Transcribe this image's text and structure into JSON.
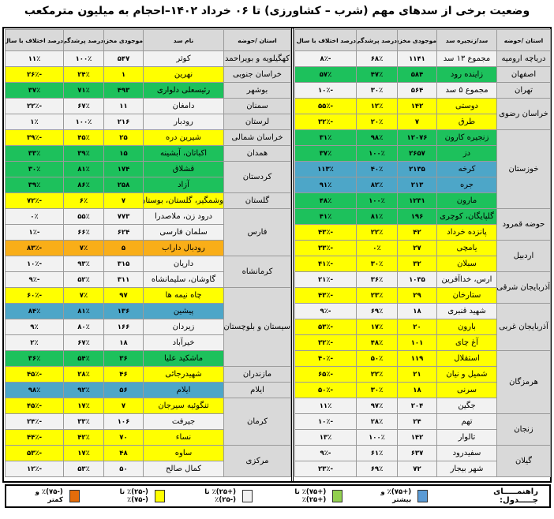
{
  "title": "وضعیت برخی از سدهای مهم (شرب – کشاورزی) تا ۰۶ خرداد ۱۴۰۲–احجام به میلیون مترمکعب",
  "colors": {
    "blue": "#4da6c8",
    "green": "#1dc15c",
    "white": "#f2f2f2",
    "yellow": "#ffff00",
    "orange": "#f9ae18",
    "header": "#d9d9d9"
  },
  "right_table": {
    "headers": [
      "استان /حوضه",
      "سد/زنجیره سد",
      "موجودی مخزن",
      "درصد پرشدگی",
      "درصد اختلاف با سال قبل"
    ],
    "groups": [
      {
        "province": "دریاچه ارومیه",
        "dams": [
          {
            "name": "مجموع ۱۳ سد",
            "storage": "۱۱۴۱",
            "fill": "۶۸٪",
            "change": "-۸٪",
            "level": "white"
          }
        ]
      },
      {
        "province": "اصفهان",
        "dams": [
          {
            "name": "زاینده رود",
            "storage": "۵۸۴",
            "fill": "۴۷٪",
            "change": "۵۷٪",
            "level": "green"
          }
        ]
      },
      {
        "province": "تهران",
        "dams": [
          {
            "name": "مجموع ۵ سد",
            "storage": "۵۶۴",
            "fill": "۳۰٪",
            "change": "-۱۰٪",
            "level": "white"
          }
        ]
      },
      {
        "province": "خراسان رضوی",
        "dams": [
          {
            "name": "دوستی",
            "storage": "۱۴۲",
            "fill": "۱۲٪",
            "change": "-۵۵٪",
            "level": "yellow"
          },
          {
            "name": "طرق",
            "storage": "۷",
            "fill": "۲۰٪",
            "change": "-۳۲٪",
            "level": "yellow"
          }
        ]
      },
      {
        "province": "خوزستان",
        "dams": [
          {
            "name": "زنجیره کارون",
            "storage": "۱۲۰۷۶",
            "fill": "۹۸٪",
            "change": "۳۱٪",
            "level": "green"
          },
          {
            "name": "دز",
            "storage": "۲۶۵۷",
            "fill": "۱۰۰٪",
            "change": "۳۷٪",
            "level": "green"
          },
          {
            "name": "کرخه",
            "storage": "۲۱۳۵",
            "fill": "۴۰٪",
            "change": "۱۱۳٪",
            "level": "blue"
          },
          {
            "name": "جره",
            "storage": "۲۱۳",
            "fill": "۸۲٪",
            "change": "۹۱٪",
            "level": "blue"
          },
          {
            "name": "مارون",
            "storage": "۱۲۳۱",
            "fill": "۱۰۰٪",
            "change": "۴۸٪",
            "level": "green"
          }
        ]
      },
      {
        "province": "حوضه قمرود",
        "dams": [
          {
            "name": "گلپایگان، کوچری",
            "storage": "۱۹۶",
            "fill": "۸۱٪",
            "change": "۴۱٪",
            "level": "green"
          },
          {
            "name": "پانزده خرداد",
            "storage": "۴۲",
            "fill": "۲۲٪",
            "change": "-۴۳٪",
            "level": "yellow"
          }
        ]
      },
      {
        "province": "اردبیل",
        "dams": [
          {
            "name": "یامچی",
            "storage": "۲۷",
            "fill": "۰٪",
            "change": "-۳۳٪",
            "level": "yellow"
          },
          {
            "name": "سبلان",
            "storage": "۳۲",
            "fill": "۳۰٪",
            "change": "-۴۱٪",
            "level": "yellow"
          }
        ]
      },
      {
        "province": "آذربایجان شرقی",
        "dams": [
          {
            "name": "ارس، خداآفرین",
            "storage": "۱۰۳۵",
            "fill": "۳۶٪",
            "change": "-۲۱٪",
            "level": "white"
          },
          {
            "name": "ستارخان",
            "storage": "۲۹",
            "fill": "۲۳٪",
            "change": "-۴۳٪",
            "level": "yellow"
          }
        ]
      },
      {
        "province": "آذربایجان غربی",
        "dams": [
          {
            "name": "شهید قنبری",
            "storage": "۱۸",
            "fill": "۶۹٪",
            "change": "-۹٪",
            "level": "white"
          },
          {
            "name": "بارون",
            "storage": "۲۰",
            "fill": "۱۷٪",
            "change": "-۵۳٪",
            "level": "yellow"
          },
          {
            "name": "آغ چای",
            "storage": "۱۰۱",
            "fill": "۴۸٪",
            "change": "-۳۲٪",
            "level": "yellow"
          }
        ]
      },
      {
        "province": "هرمزگان",
        "dams": [
          {
            "name": "استقلال",
            "storage": "۱۱۹",
            "fill": "۵۰٪",
            "change": "-۴۰٪",
            "level": "yellow"
          },
          {
            "name": "شمیل و نیان",
            "storage": "۲۱",
            "fill": "۲۲٪",
            "change": "-۶۵٪",
            "level": "yellow"
          },
          {
            "name": "سرنی",
            "storage": "۱۸",
            "fill": "۳۰٪",
            "change": "-۵۰٪",
            "level": "yellow"
          },
          {
            "name": "جگین",
            "storage": "۲۰۴",
            "fill": "۹۷٪",
            "change": "۱۱٪",
            "level": "white"
          }
        ]
      },
      {
        "province": "زنجان",
        "dams": [
          {
            "name": "تهم",
            "storage": "۲۴",
            "fill": "۲۸٪",
            "change": "-۱۰٪",
            "level": "white"
          },
          {
            "name": "تالوار",
            "storage": "۱۴۲",
            "fill": "۱۰۰٪",
            "change": "۱۳٪",
            "level": "white"
          }
        ]
      },
      {
        "province": "گیلان",
        "dams": [
          {
            "name": "سفیدرود",
            "storage": "۶۳۷",
            "fill": "۶۱٪",
            "change": "-۹٪",
            "level": "white"
          },
          {
            "name": "شهر بیجار",
            "storage": "۷۲",
            "fill": "۶۹٪",
            "change": "-۲۳٪",
            "level": "white"
          }
        ]
      }
    ]
  },
  "left_table": {
    "headers": [
      "استان /حوضه",
      "نام سد",
      "موجودی مخزن",
      "درصد پرشدگی",
      "درصد اختلاف با سال قبل"
    ],
    "groups": [
      {
        "province": "کهگیلویه و بویراحمد",
        "dams": [
          {
            "name": "کوثر",
            "storage": "۵۴۷",
            "fill": "۱۰۰٪",
            "change": "۱۱٪",
            "level": "white"
          }
        ]
      },
      {
        "province": "خراسان جنوبی",
        "dams": [
          {
            "name": "نهرین",
            "storage": "۱",
            "fill": "۲۴٪",
            "change": "-۲۶٪",
            "level": "yellow"
          }
        ]
      },
      {
        "province": "بوشهر",
        "dams": [
          {
            "name": "رئیسعلی دلواری",
            "storage": "۴۹۳",
            "fill": "۷۱٪",
            "change": "۳۷٪",
            "level": "green"
          }
        ]
      },
      {
        "province": "سمنان",
        "dams": [
          {
            "name": "دامغان",
            "storage": "۱۱",
            "fill": "۶۷٪",
            "change": "-۲۲٪",
            "level": "white"
          }
        ]
      },
      {
        "province": "لرستان",
        "dams": [
          {
            "name": "رودبار",
            "storage": "۲۱۶",
            "fill": "۱۰۰٪",
            "change": "۱٪",
            "level": "white"
          }
        ]
      },
      {
        "province": "خراسان شمالی",
        "dams": [
          {
            "name": "شیرین دره",
            "storage": "۲۵",
            "fill": "۴۵٪",
            "change": "-۳۹٪",
            "level": "yellow"
          }
        ]
      },
      {
        "province": "همدان",
        "dams": [
          {
            "name": "اکباتان، آبشینه",
            "storage": "۱۵",
            "fill": "۳۹٪",
            "change": "۳۳٪",
            "level": "green"
          }
        ]
      },
      {
        "province": "کردستان",
        "dams": [
          {
            "name": "قشلاق",
            "storage": "۱۷۴",
            "fill": "۸۱٪",
            "change": "۳۰٪",
            "level": "green"
          },
          {
            "name": "آزاد",
            "storage": "۲۵۸",
            "fill": "۸۶٪",
            "change": "۳۹٪",
            "level": "green"
          }
        ]
      },
      {
        "province": "گلستان",
        "dams": [
          {
            "name": "وشمگیر، گلستان، بوستان",
            "storage": "۷",
            "fill": "۶٪",
            "change": "-۷۲٪",
            "level": "yellow"
          }
        ]
      },
      {
        "province": "فارس",
        "dams": [
          {
            "name": "درود زن، ملاصدرا",
            "storage": "۷۷۳",
            "fill": "۵۵٪",
            "change": "۰٪",
            "level": "white"
          },
          {
            "name": "سلمان فارسی",
            "storage": "۶۲۴",
            "fill": "۶۶٪",
            "change": "-۱٪",
            "level": "white"
          },
          {
            "name": "رودبال داراب",
            "storage": "۵",
            "fill": "۷٪",
            "change": "-۸۳٪",
            "level": "orange"
          }
        ]
      },
      {
        "province": "کرمانشاه",
        "dams": [
          {
            "name": "داریان",
            "storage": "۳۱۵",
            "fill": "۹۳٪",
            "change": "-۱۰٪",
            "level": "white"
          },
          {
            "name": "گاوشان، سلیمانشاه",
            "storage": "۳۱۱",
            "fill": "۵۲٪",
            "change": "-۹٪",
            "level": "white"
          }
        ]
      },
      {
        "province": "سیستان و بلوچستان",
        "dams": [
          {
            "name": "چاه نیمه ها",
            "storage": "۹۷",
            "fill": "۷٪",
            "change": "-۶۰٪",
            "level": "yellow"
          },
          {
            "name": "پیشین",
            "storage": "۱۳۶",
            "fill": "۸۱٪",
            "change": "۸۴٪",
            "level": "blue"
          },
          {
            "name": "زیردان",
            "storage": "۱۶۶",
            "fill": "۸۰٪",
            "change": "۹٪",
            "level": "white"
          },
          {
            "name": "خیرآباد",
            "storage": "۱۸",
            "fill": "۶۷٪",
            "change": "۲٪",
            "level": "white"
          },
          {
            "name": "ماشکید علیا",
            "storage": "۳۶",
            "fill": "۵۴٪",
            "change": "۳۶٪",
            "level": "green"
          }
        ]
      },
      {
        "province": "مازندران",
        "dams": [
          {
            "name": "شهیدرجائی",
            "storage": "۴۶",
            "fill": "۲۸٪",
            "change": "-۴۵٪",
            "level": "yellow"
          }
        ]
      },
      {
        "province": "ایلام",
        "dams": [
          {
            "name": "ایلام",
            "storage": "۵۶",
            "fill": "۹۲٪",
            "change": "۹۸٪",
            "level": "blue"
          }
        ]
      },
      {
        "province": "کرمان",
        "dams": [
          {
            "name": "تنگوئیه سیرجان",
            "storage": "۷",
            "fill": "۱۷٪",
            "change": "-۴۵٪",
            "level": "yellow"
          },
          {
            "name": "جیرفت",
            "storage": "۱۰۶",
            "fill": "۳۳٪",
            "change": "-۲۴٪",
            "level": "white"
          },
          {
            "name": "نساء",
            "storage": "۷۰",
            "fill": "۴۲٪",
            "change": "-۴۴٪",
            "level": "yellow"
          }
        ]
      },
      {
        "province": "مرکزی",
        "dams": [
          {
            "name": "ساوه",
            "storage": "۴۸",
            "fill": "۱۷٪",
            "change": "-۵۳٪",
            "level": "yellow"
          },
          {
            "name": "کمال صالح",
            "storage": "۵۰",
            "fill": "۵۳٪",
            "change": "-۱۲٪",
            "level": "white"
          }
        ]
      }
    ]
  },
  "legend": {
    "title": "راهنمـــــای جـــــدول:",
    "items": [
      {
        "label": "(+۷۵)٪ و بیشتر",
        "color": "#5b9bd5"
      },
      {
        "label": "(+۷۵)٪ تا (+۲۵)٪",
        "color": "#92d050"
      },
      {
        "label": "(+۲۵)٪ تا (-۲۵)٪",
        "color": "#f2f2f2"
      },
      {
        "label": "(-۲۵)٪ تا (-۷۵)٪",
        "color": "#ffff00"
      },
      {
        "label": "(-۷۵)٪ و کمتر",
        "color": "#e46c0a"
      }
    ]
  }
}
